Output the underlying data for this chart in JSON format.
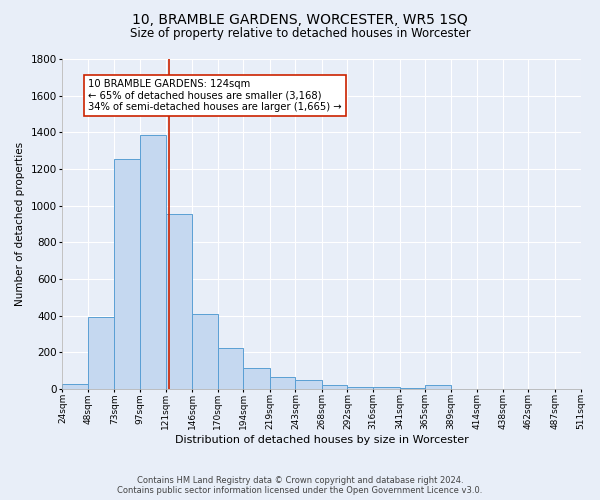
{
  "title": "10, BRAMBLE GARDENS, WORCESTER, WR5 1SQ",
  "subtitle": "Size of property relative to detached houses in Worcester",
  "xlabel": "Distribution of detached houses by size in Worcester",
  "ylabel": "Number of detached properties",
  "footer_line1": "Contains HM Land Registry data © Crown copyright and database right 2024.",
  "footer_line2": "Contains public sector information licensed under the Open Government Licence v3.0.",
  "bins": [
    24,
    48,
    73,
    97,
    121,
    146,
    170,
    194,
    219,
    243,
    268,
    292,
    316,
    341,
    365,
    389,
    414,
    438,
    462,
    487,
    511
  ],
  "counts": [
    25,
    390,
    1255,
    1385,
    955,
    410,
    225,
    115,
    65,
    50,
    20,
    10,
    10,
    5,
    20,
    0,
    0,
    0,
    0,
    0
  ],
  "property_size": 124,
  "annotation_title": "10 BRAMBLE GARDENS: 124sqm",
  "annotation_line2": "← 65% of detached houses are smaller (3,168)",
  "annotation_line3": "34% of semi-detached houses are larger (1,665) →",
  "bar_color": "#c5d8f0",
  "bar_edge_color": "#5a9fd4",
  "vline_color": "#cc2200",
  "annotation_box_color": "#ffffff",
  "annotation_box_edge": "#cc2200",
  "bg_color": "#e8eef8",
  "grid_color": "#ffffff",
  "ylim": [
    0,
    1800
  ],
  "yticks": [
    0,
    200,
    400,
    600,
    800,
    1000,
    1200,
    1400,
    1600,
    1800
  ],
  "title_fontsize": 10,
  "subtitle_fontsize": 8.5
}
